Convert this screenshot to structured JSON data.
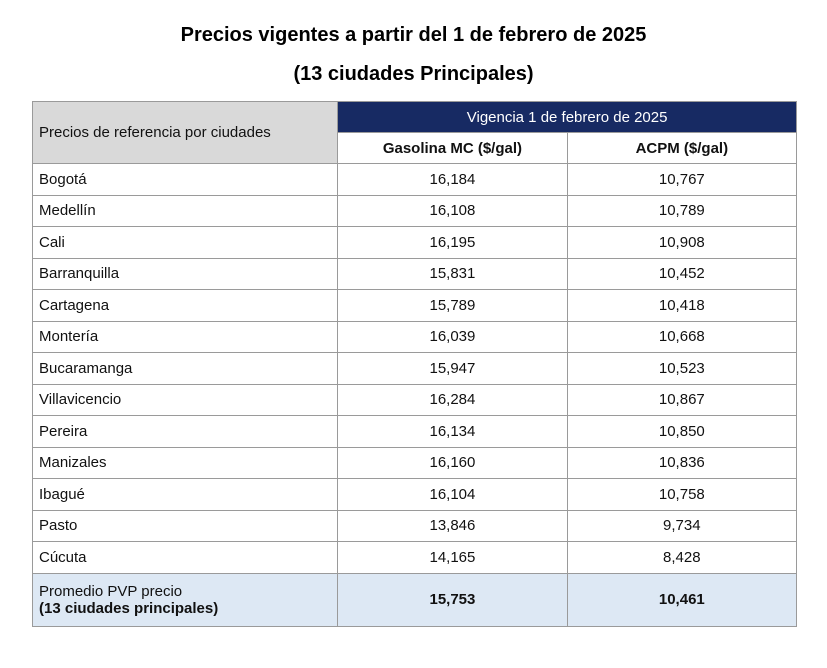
{
  "header": {
    "title": "Precios vigentes a partir del 1 de febrero de 2025",
    "subtitle": "(13 ciudades Principales)"
  },
  "table": {
    "row_header_label": "Precios de referencia por ciudades",
    "group_header": "Vigencia 1 de febrero de 2025",
    "columns": [
      "Gasolina MC ($/gal)",
      "ACPM ($/gal)"
    ],
    "rows": [
      [
        "Bogotá",
        "16,184",
        "10,767"
      ],
      [
        "Medellín",
        "16,108",
        "10,789"
      ],
      [
        "Cali",
        "16,195",
        "10,908"
      ],
      [
        "Barranquilla",
        "15,831",
        "10,452"
      ],
      [
        "Cartagena",
        "15,789",
        "10,418"
      ],
      [
        "Montería",
        "16,039",
        "10,668"
      ],
      [
        "Bucaramanga",
        "15,947",
        "10,523"
      ],
      [
        "Villavicencio",
        "16,284",
        "10,867"
      ],
      [
        "Pereira",
        "16,134",
        "10,850"
      ],
      [
        "Manizales",
        "16,160",
        "10,836"
      ],
      [
        "Ibagué",
        "16,104",
        "10,758"
      ],
      [
        "Pasto",
        "13,846",
        "9,734"
      ],
      [
        "Cúcuta",
        "14,165",
        "8,428"
      ]
    ],
    "footer": {
      "label_line1": "Promedio PVP precio",
      "label_line2": "(13 ciudades principales)",
      "values": [
        "15,753",
        "10,461"
      ]
    }
  }
}
